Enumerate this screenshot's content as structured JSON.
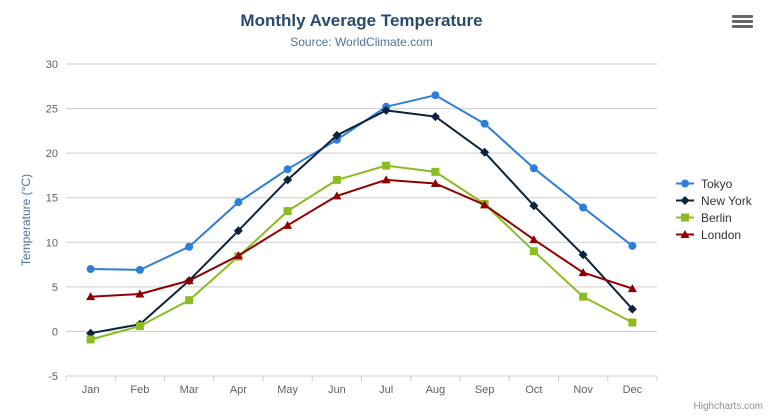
{
  "chart": {
    "credits": "Highcharts.com",
    "menu_icon": "hamburger-icon",
    "colors": {
      "grid": "#cccccc",
      "axis_line": "#c0d0e0",
      "tick": "#c0d0e0",
      "axis_label": "#606060",
      "title": "#274b6d",
      "subtitle": "#4d759e",
      "legend_text": "#333333",
      "credits_text": "#909090"
    }
  },
  "chart_data": {
    "type": "line",
    "title": "Monthly Average Temperature",
    "subtitle": "Source: WorldClimate.com",
    "xlabel": "",
    "ylabel": "Temperature (°C)",
    "ylim": [
      -5,
      30
    ],
    "ytick_interval": 5,
    "grid": true,
    "legend_position": "right",
    "categories": [
      "Jan",
      "Feb",
      "Mar",
      "Apr",
      "May",
      "Jun",
      "Jul",
      "Aug",
      "Sep",
      "Oct",
      "Nov",
      "Dec"
    ],
    "series": [
      {
        "name": "Tokyo",
        "color": "#2f7ed8",
        "marker": "circle",
        "values": [
          7.0,
          6.9,
          9.5,
          14.5,
          18.2,
          21.5,
          25.2,
          26.5,
          23.3,
          18.3,
          13.9,
          9.6
        ]
      },
      {
        "name": "New York",
        "color": "#0d233a",
        "marker": "diamond",
        "values": [
          -0.2,
          0.8,
          5.7,
          11.3,
          17.0,
          22.0,
          24.8,
          24.1,
          20.1,
          14.1,
          8.6,
          2.5
        ]
      },
      {
        "name": "Berlin",
        "color": "#8bbc21",
        "marker": "square",
        "values": [
          -0.9,
          0.6,
          3.5,
          8.4,
          13.5,
          17.0,
          18.6,
          17.9,
          14.3,
          9.0,
          3.9,
          1.0
        ]
      },
      {
        "name": "London",
        "color": "#910000",
        "marker": "triangle",
        "values": [
          3.9,
          4.2,
          5.7,
          8.5,
          11.9,
          15.2,
          17.0,
          16.6,
          14.2,
          10.3,
          6.6,
          4.8
        ]
      }
    ]
  }
}
